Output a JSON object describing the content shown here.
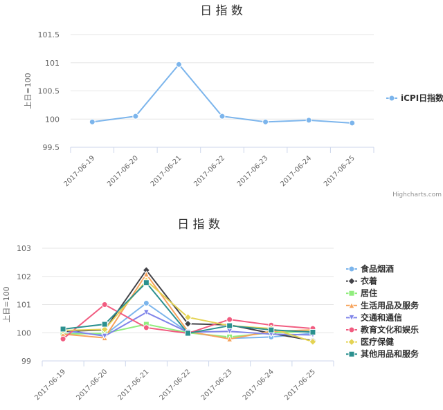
{
  "credits": "Highcharts.com",
  "chart_data": [
    {
      "type": "line",
      "title": "日 指 数",
      "ylabel": "上日=100",
      "ylim": [
        99.5,
        101.5
      ],
      "yticks": [
        "99.5",
        "100",
        "100.5",
        "101",
        "101.5"
      ],
      "yticks_values": [
        99.5,
        100,
        100.5,
        101,
        101.5
      ],
      "categories": [
        "2017-06-19",
        "2017-06-20",
        "2017-06-21",
        "2017-06-22",
        "2017-06-23",
        "2017-06-24",
        "2017-06-25"
      ],
      "grid": true,
      "legend_position": "right",
      "series": [
        {
          "name": "iCPI日指数",
          "color": "#7cb5ec",
          "marker": "circle",
          "values": [
            99.95,
            100.05,
            100.97,
            100.05,
            99.95,
            99.98,
            99.93
          ]
        }
      ]
    },
    {
      "type": "line",
      "title": "日 指 数",
      "ylabel": "上日=100",
      "ylim": [
        99,
        103
      ],
      "yticks": [
        "99",
        "100",
        "101",
        "102",
        "103"
      ],
      "yticks_values": [
        99,
        100,
        101,
        102,
        103
      ],
      "categories": [
        "2017-06-19",
        "2017-06-20",
        "2017-06-21",
        "2017-06-22",
        "2017-06-23",
        "2017-06-24",
        "2017-06-25"
      ],
      "grid": true,
      "legend_position": "right",
      "series": [
        {
          "name": "食品烟酒",
          "color": "#7cb5ec",
          "marker": "circle",
          "values": [
            100.05,
            99.92,
            101.05,
            100.02,
            99.8,
            99.85,
            99.98
          ]
        },
        {
          "name": "衣着",
          "color": "#434348",
          "marker": "diamond",
          "values": [
            100.05,
            100.1,
            102.22,
            100.32,
            100.28,
            99.98,
            99.72
          ]
        },
        {
          "name": "居住",
          "color": "#90ed7d",
          "marker": "square",
          "values": [
            99.95,
            99.98,
            100.3,
            100.0,
            99.85,
            100.0,
            100.05
          ]
        },
        {
          "name": "生活用品及服务",
          "color": "#f7a35c",
          "marker": "triangle",
          "values": [
            99.95,
            99.82,
            102.08,
            100.05,
            99.78,
            100.05,
            100.1
          ]
        },
        {
          "name": "交通和通信",
          "color": "#8085e9",
          "marker": "triangle-down",
          "values": [
            100.1,
            99.88,
            100.72,
            100.02,
            100.05,
            99.95,
            99.92
          ]
        },
        {
          "name": "教育文化和娱乐",
          "color": "#f15c80",
          "marker": "circle",
          "values": [
            99.78,
            101.0,
            100.18,
            99.98,
            100.47,
            100.27,
            100.15
          ]
        },
        {
          "name": "医疗保健",
          "color": "#e4d354",
          "marker": "diamond",
          "values": [
            100.08,
            100.12,
            101.85,
            100.55,
            100.25,
            100.15,
            99.68
          ]
        },
        {
          "name": "其他用品和服务",
          "color": "#2b908f",
          "marker": "square",
          "values": [
            100.13,
            100.3,
            101.78,
            99.98,
            100.25,
            100.1,
            100.02
          ]
        }
      ]
    }
  ]
}
